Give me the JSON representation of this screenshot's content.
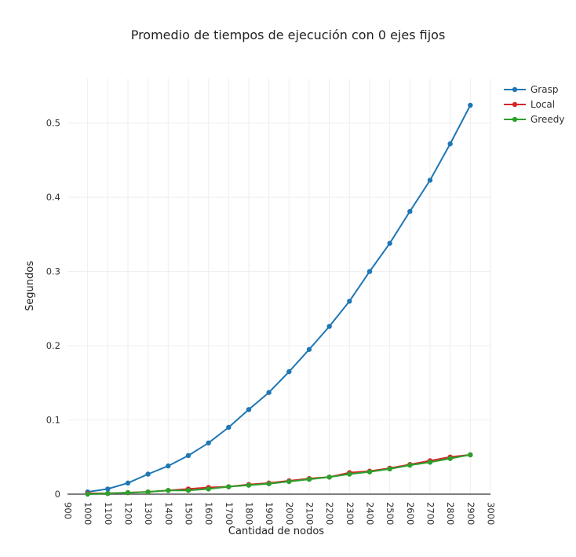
{
  "chart_data": {
    "type": "line",
    "title": "Promedio de tiempos de ejecución con 0 ejes fijos",
    "xlabel": "Cantidad de nodos",
    "ylabel": "Segundos",
    "xlim": [
      900,
      3000
    ],
    "ylim": [
      0,
      0.56
    ],
    "x_ticks": [
      900,
      1000,
      1100,
      1200,
      1300,
      1400,
      1500,
      1600,
      1700,
      1800,
      1900,
      2000,
      2100,
      2200,
      2300,
      2400,
      2500,
      2600,
      2700,
      2800,
      2900,
      3000
    ],
    "y_ticks": [
      0,
      0.1,
      0.2,
      0.3,
      0.4,
      0.5
    ],
    "y_tick_labels": [
      "0",
      "0.1",
      "0.2",
      "0.3",
      "0.4",
      "0.5"
    ],
    "grid": true,
    "legend_position": "top-right",
    "x": [
      1000,
      1100,
      1200,
      1300,
      1400,
      1500,
      1600,
      1700,
      1800,
      1900,
      2000,
      2100,
      2200,
      2300,
      2400,
      2500,
      2600,
      2700,
      2800,
      2900
    ],
    "series": [
      {
        "name": "Grasp",
        "color": "#1f77b4",
        "values": [
          0.003,
          0.007,
          0.015,
          0.027,
          0.038,
          0.052,
          0.069,
          0.09,
          0.114,
          0.137,
          0.165,
          0.195,
          0.226,
          0.26,
          0.3,
          0.338,
          0.381,
          0.423,
          0.472,
          0.524
        ]
      },
      {
        "name": "Local",
        "color": "#d62728",
        "values": [
          0.001,
          0.001,
          0.002,
          0.003,
          0.005,
          0.007,
          0.009,
          0.01,
          0.013,
          0.015,
          0.018,
          0.021,
          0.023,
          0.029,
          0.031,
          0.035,
          0.04,
          0.045,
          0.05,
          0.053
        ]
      },
      {
        "name": "Greedy",
        "color": "#2ca02c",
        "values": [
          0.0,
          0.001,
          0.002,
          0.003,
          0.005,
          0.005,
          0.007,
          0.01,
          0.012,
          0.014,
          0.017,
          0.02,
          0.023,
          0.027,
          0.03,
          0.034,
          0.039,
          0.043,
          0.048,
          0.053
        ]
      }
    ]
  }
}
